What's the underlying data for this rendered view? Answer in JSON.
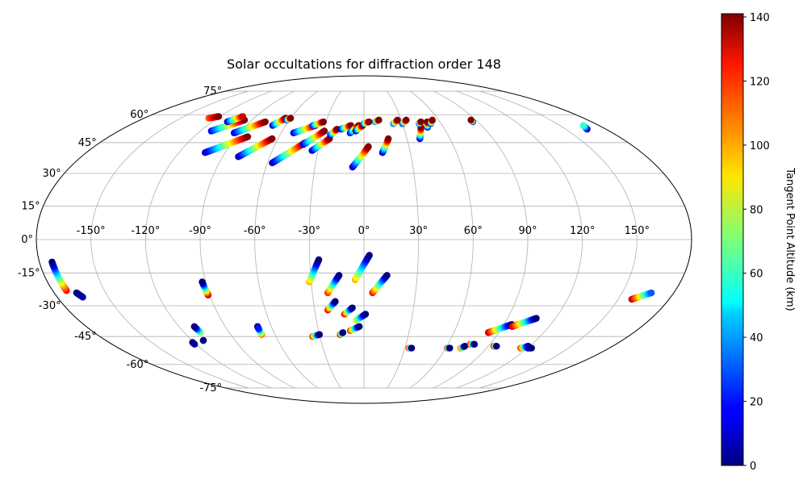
{
  "chart_data": {
    "type": "scatter",
    "projection": "mollweide",
    "title": "Solar occultations for diffraction order 148",
    "x_tick_labels": [
      "-150°",
      "-120°",
      "-90°",
      "-60°",
      "-30°",
      "0°",
      "30°",
      "60°",
      "90°",
      "120°",
      "150°"
    ],
    "x_tick_values": [
      -150,
      -120,
      -90,
      -60,
      -30,
      0,
      30,
      60,
      90,
      120,
      150
    ],
    "y_tick_labels": [
      "-75°",
      "-60°",
      "-45°",
      "-30°",
      "-15°",
      "0°",
      "15°",
      "30°",
      "45°",
      "60°",
      "75°"
    ],
    "y_tick_values": [
      -75,
      -60,
      -45,
      -30,
      -15,
      0,
      15,
      30,
      45,
      60,
      75
    ],
    "grid": true,
    "colorbar": {
      "label": "Tangent Point Altitude (km)",
      "colormap": "jet",
      "vmin": 0,
      "vmax": 141,
      "ticks": [
        0,
        20,
        40,
        60,
        80,
        100,
        120,
        140
      ],
      "tick_labels": [
        "0",
        "20",
        "40",
        "60",
        "80",
        "100",
        "120",
        "140"
      ],
      "orientation": "vertical",
      "placement": "right"
    },
    "marker_color_encodes": "tangent point altitude (km)",
    "tracks": [
      {
        "from": [
          -127,
          58
        ],
        "to": [
          -121,
          59
        ],
        "alt_from": 110,
        "alt_to": 141
      },
      {
        "from": [
          -112,
          51
        ],
        "to": [
          -96,
          57
        ],
        "alt_from": 15,
        "alt_to": 141
      },
      {
        "from": [
          -108,
          56
        ],
        "to": [
          -101,
          59
        ],
        "alt_from": 10,
        "alt_to": 130
      },
      {
        "from": [
          -94,
          50
        ],
        "to": [
          -78,
          56
        ],
        "alt_from": 10,
        "alt_to": 141
      },
      {
        "from": [
          -103,
          40
        ],
        "to": [
          -82,
          48
        ],
        "alt_from": 5,
        "alt_to": 141
      },
      {
        "from": [
          -80,
          38
        ],
        "to": [
          -64,
          47
        ],
        "alt_from": 5,
        "alt_to": 141
      },
      {
        "from": [
          -70,
          54
        ],
        "to": [
          -64,
          58
        ],
        "alt_from": 10,
        "alt_to": 141
      },
      {
        "from": [
          -62,
          57
        ],
        "to": [
          -60,
          58
        ],
        "alt_from": 20,
        "alt_to": 141
      },
      {
        "from": [
          -51,
          50
        ],
        "to": [
          -37,
          54
        ],
        "alt_from": 10,
        "alt_to": 141
      },
      {
        "from": [
          -57,
          35
        ],
        "to": [
          -40,
          45
        ],
        "alt_from": 5,
        "alt_to": 141
      },
      {
        "from": [
          -39,
          54
        ],
        "to": [
          -32,
          56
        ],
        "alt_from": 20,
        "alt_to": 141
      },
      {
        "from": [
          -41,
          44
        ],
        "to": [
          -29,
          51
        ],
        "alt_from": 10,
        "alt_to": 141
      },
      {
        "from": [
          -34,
          41
        ],
        "to": [
          -24,
          47
        ],
        "alt_from": 5,
        "alt_to": 141
      },
      {
        "from": [
          -24,
          49
        ],
        "to": [
          -20,
          52
        ],
        "alt_from": 10,
        "alt_to": 141
      },
      {
        "from": [
          -17,
          52
        ],
        "to": [
          -10,
          54
        ],
        "alt_from": 10,
        "alt_to": 141
      },
      {
        "from": [
          -10,
          50
        ],
        "to": [
          -4,
          54
        ],
        "alt_from": 10,
        "alt_to": 141
      },
      {
        "from": [
          -6,
          51
        ],
        "to": [
          -1,
          54
        ],
        "alt_from": 5,
        "alt_to": 141
      },
      {
        "from": [
          0,
          55
        ],
        "to": [
          4,
          56
        ],
        "alt_from": 30,
        "alt_to": 141
      },
      {
        "from": [
          9,
          56
        ],
        "to": [
          12,
          57
        ],
        "alt_from": 30,
        "alt_to": 141
      },
      {
        "from": [
          -7,
          33
        ],
        "to": [
          3,
          43
        ],
        "alt_from": 5,
        "alt_to": 141
      },
      {
        "from": [
          12,
          40
        ],
        "to": [
          17,
          47
        ],
        "alt_from": 5,
        "alt_to": 141
      },
      {
        "from": [
          23,
          55
        ],
        "to": [
          27,
          57
        ],
        "alt_from": 30,
        "alt_to": 141
      },
      {
        "from": [
          30,
          55
        ],
        "to": [
          34,
          57
        ],
        "alt_from": 20,
        "alt_to": 141
      },
      {
        "from": [
          39,
          47
        ],
        "to": [
          43,
          53
        ],
        "alt_from": 5,
        "alt_to": 141
      },
      {
        "from": [
          43,
          55
        ],
        "to": [
          45,
          56
        ],
        "alt_from": 30,
        "alt_to": 141
      },
      {
        "from": [
          48,
          53
        ],
        "to": [
          50,
          56
        ],
        "alt_from": 10,
        "alt_to": 141
      },
      {
        "from": [
          52,
          55
        ],
        "to": [
          55,
          57
        ],
        "alt_from": 20,
        "alt_to": 141
      },
      {
        "from": [
          86,
          56
        ],
        "to": [
          86,
          57
        ],
        "alt_from": 20,
        "alt_to": 141
      },
      {
        "from": [
          166,
          52
        ],
        "to": [
          168,
          54
        ],
        "alt_from": 0,
        "alt_to": 60
      },
      {
        "from": [
          -5,
          -18
        ],
        "to": [
          3,
          -7
        ],
        "alt_from": 100,
        "alt_to": 0
      },
      {
        "from": [
          -31,
          -19
        ],
        "to": [
          -25,
          -9
        ],
        "alt_from": 100,
        "alt_to": 0
      },
      {
        "from": [
          -21,
          -24
        ],
        "to": [
          -14,
          -16
        ],
        "alt_from": 120,
        "alt_to": 0
      },
      {
        "from": [
          5,
          -24
        ],
        "to": [
          13,
          -16
        ],
        "alt_from": 125,
        "alt_to": 0
      },
      {
        "from": [
          -22,
          -32
        ],
        "to": [
          -17,
          -28
        ],
        "alt_from": 130,
        "alt_to": 0
      },
      {
        "from": [
          -12,
          -34
        ],
        "to": [
          -7,
          -31
        ],
        "alt_from": 130,
        "alt_to": 0
      },
      {
        "from": [
          -5,
          -37
        ],
        "to": [
          1,
          -34
        ],
        "alt_from": 90,
        "alt_to": 0
      },
      {
        "from": [
          -9,
          -42
        ],
        "to": [
          -3,
          -40
        ],
        "alt_from": 120,
        "alt_to": 0
      },
      {
        "from": [
          -16,
          -44
        ],
        "to": [
          -14,
          -43
        ],
        "alt_from": 130,
        "alt_to": 0
      },
      {
        "from": [
          -35,
          -45
        ],
        "to": [
          -30,
          -44
        ],
        "alt_from": 120,
        "alt_to": 0
      },
      {
        "from": [
          -69,
          -44
        ],
        "to": [
          -69,
          -40
        ],
        "alt_from": 110,
        "alt_to": 0
      },
      {
        "from": [
          -69,
          -40
        ],
        "to": [
          -69,
          -41
        ],
        "alt_from": 5,
        "alt_to": 20
      },
      {
        "from": [
          -91,
          -25
        ],
        "to": [
          -92,
          -19
        ],
        "alt_from": 135,
        "alt_to": 0
      },
      {
        "from": [
          -109,
          -43
        ],
        "to": [
          -110,
          -40
        ],
        "alt_from": 80,
        "alt_to": 0
      },
      {
        "from": [
          -121,
          -49
        ],
        "to": [
          -121,
          -48
        ],
        "alt_from": 10,
        "alt_to": 0
      },
      {
        "from": [
          -112,
          -47
        ],
        "to": [
          -112,
          -47
        ],
        "alt_from": 20,
        "alt_to": 0
      },
      {
        "from": [
          -172,
          -23
        ],
        "to": [
          -173,
          -10
        ],
        "alt_from": 125,
        "alt_to": 0
      },
      {
        "from": [
          -165,
          -26
        ],
        "to": [
          -167,
          -24
        ],
        "alt_from": 10,
        "alt_to": 0
      },
      {
        "from": [
          33,
          -51
        ],
        "to": [
          35,
          -51
        ],
        "alt_from": 120,
        "alt_to": 0
      },
      {
        "from": [
          61,
          -51
        ],
        "to": [
          63,
          -51
        ],
        "alt_from": 110,
        "alt_to": 0
      },
      {
        "from": [
          71,
          -51
        ],
        "to": [
          73,
          -50
        ],
        "alt_from": 110,
        "alt_to": 0
      },
      {
        "from": [
          76,
          -49
        ],
        "to": [
          79,
          -49
        ],
        "alt_from": 130,
        "alt_to": 0
      },
      {
        "from": [
          94,
          -50
        ],
        "to": [
          96,
          -50
        ],
        "alt_from": 130,
        "alt_to": 0
      },
      {
        "from": [
          83,
          -43
        ],
        "to": [
          95,
          -39
        ],
        "alt_from": 135,
        "alt_to": 0
      },
      {
        "from": [
          96,
          -40
        ],
        "to": [
          108,
          -36
        ],
        "alt_from": 135,
        "alt_to": 0
      },
      {
        "from": [
          115,
          -51
        ],
        "to": [
          119,
          -50
        ],
        "alt_from": 120,
        "alt_to": 0
      },
      {
        "from": [
          120,
          -51
        ],
        "to": [
          123,
          -51
        ],
        "alt_from": 20,
        "alt_to": 0
      },
      {
        "from": [
          158,
          -27
        ],
        "to": [
          167,
          -24
        ],
        "alt_from": 135,
        "alt_to": 30
      }
    ]
  }
}
